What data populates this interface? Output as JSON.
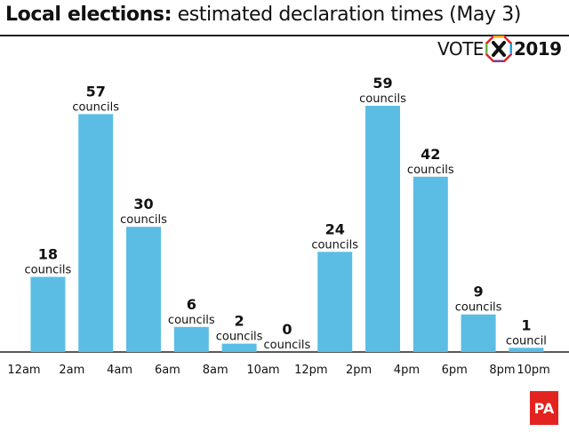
{
  "title": {
    "bold": "Local elections:",
    "rest": " estimated declaration times (May 3)"
  },
  "logo": {
    "word": "VOTE",
    "year": "2019",
    "icon": "ballot-x-icon"
  },
  "brand": {
    "text": "PA",
    "color": "#e3231f"
  },
  "colors": {
    "bar": "#5bbde4",
    "baseline": "#222222"
  },
  "chart_data": {
    "type": "bar",
    "title": "Local elections: estimated declaration times (May 3)",
    "xlabel": "",
    "ylabel": "",
    "ylim": [
      0,
      59
    ],
    "grid": false,
    "tick_labels": [
      "12am",
      "2am",
      "4am",
      "6am",
      "8am",
      "10am",
      "12pm",
      "2pm",
      "4pm",
      "6pm",
      "8pm",
      "10pm"
    ],
    "bars": [
      {
        "value": 18,
        "unit": "councils"
      },
      {
        "value": 57,
        "unit": "councils"
      },
      {
        "value": 30,
        "unit": "councils"
      },
      {
        "value": 6,
        "unit": "councils"
      },
      {
        "value": 2,
        "unit": "councils"
      },
      {
        "value": 0,
        "unit": "councils"
      },
      {
        "value": 24,
        "unit": "councils"
      },
      {
        "value": 59,
        "unit": "councils"
      },
      {
        "value": 42,
        "unit": "councils"
      },
      {
        "value": 9,
        "unit": "councils"
      },
      {
        "value": 1,
        "unit": "council"
      }
    ]
  }
}
